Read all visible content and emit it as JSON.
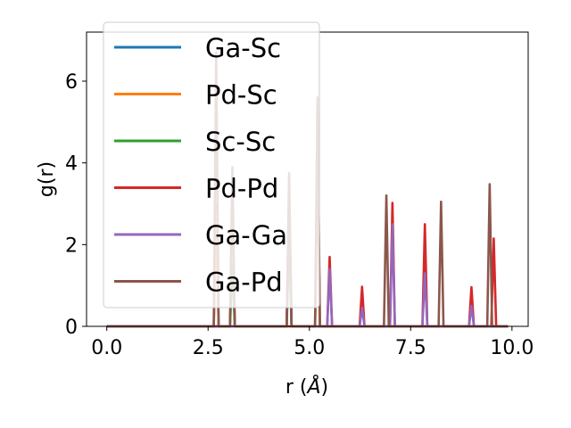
{
  "chart_data": {
    "type": "line",
    "xlabel": "r (Å)",
    "xlabel_prefix": "r (",
    "xlabel_unit": "Å",
    "xlabel_suffix": ")",
    "ylabel": "g(r)",
    "xlim": [
      -0.5,
      10.4
    ],
    "ylim": [
      0,
      7.2
    ],
    "xticks": [
      0.0,
      2.5,
      5.0,
      7.5,
      10.0
    ],
    "xtick_labels": [
      "0.0",
      "2.5",
      "5.0",
      "7.5",
      "10.0"
    ],
    "yticks": [
      0,
      2,
      4,
      6
    ],
    "ytick_labels": [
      "0",
      "2",
      "4",
      "6"
    ],
    "grid": false,
    "legend_position": "upper-left",
    "series": [
      {
        "name": "Ga-Sc",
        "color": "#1f77b4",
        "peaks": [
          [
            2.7,
            3.0
          ],
          [
            3.1,
            2.5
          ],
          [
            4.5,
            3.4
          ],
          [
            5.2,
            4.5
          ]
        ]
      },
      {
        "name": "Pd-Sc",
        "color": "#ff7f0e",
        "peaks": [
          [
            2.7,
            2.8
          ],
          [
            3.1,
            2.2
          ],
          [
            4.5,
            3.0
          ],
          [
            5.2,
            4.0
          ]
        ]
      },
      {
        "name": "Sc-Sc",
        "color": "#2ca02c",
        "peaks": [
          [
            3.1,
            1.5
          ],
          [
            4.5,
            2.0
          ]
        ]
      },
      {
        "name": "Pd-Pd",
        "color": "#d62728",
        "peaks": [
          [
            5.5,
            1.7
          ],
          [
            6.3,
            0.97
          ],
          [
            7.05,
            3.02
          ],
          [
            7.85,
            2.5
          ],
          [
            9.0,
            0.96
          ],
          [
            9.55,
            2.15
          ]
        ]
      },
      {
        "name": "Ga-Ga",
        "color": "#9467bd",
        "peaks": [
          [
            4.5,
            3.3
          ],
          [
            5.5,
            1.4
          ],
          [
            6.3,
            0.45
          ],
          [
            7.05,
            2.5
          ],
          [
            7.85,
            1.3
          ],
          [
            9.0,
            0.5
          ]
        ]
      },
      {
        "name": "Ga-Pd",
        "color": "#8c564b",
        "peaks": [
          [
            2.7,
            6.7
          ],
          [
            3.1,
            3.9
          ],
          [
            4.5,
            3.75
          ],
          [
            5.2,
            5.6
          ],
          [
            6.9,
            3.2
          ],
          [
            8.25,
            3.05
          ],
          [
            9.45,
            3.48
          ]
        ]
      }
    ],
    "x_range": [
      0.0,
      9.9
    ]
  }
}
